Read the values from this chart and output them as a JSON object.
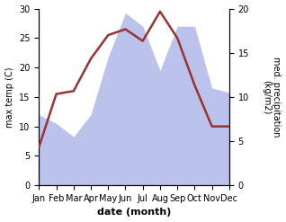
{
  "months": [
    "Jan",
    "Feb",
    "Mar",
    "Apr",
    "May",
    "Jun",
    "Jul",
    "Aug",
    "Sep",
    "Oct",
    "Nov",
    "Dec"
  ],
  "month_positions": [
    0,
    1,
    2,
    3,
    4,
    5,
    6,
    7,
    8,
    9,
    10,
    11
  ],
  "max_temp": [
    6.5,
    15.5,
    16.0,
    21.5,
    25.5,
    26.5,
    24.5,
    29.5,
    25.0,
    17.0,
    10.0,
    10.0
  ],
  "precipitation": [
    8.0,
    7.0,
    5.5,
    8.0,
    14.5,
    19.5,
    18.0,
    13.0,
    18.0,
    18.0,
    11.0,
    10.5
  ],
  "temp_color": "#993333",
  "precip_color_fill": "#b0b8e8",
  "temp_ylim": [
    0,
    30
  ],
  "precip_ylim": [
    0,
    20
  ],
  "xlabel": "date (month)",
  "ylabel_left": "max temp (C)",
  "ylabel_right": "med. precipitation\n(kg/m2)",
  "bg_color": "#ffffff",
  "label_fontsize": 8,
  "tick_fontsize": 7
}
